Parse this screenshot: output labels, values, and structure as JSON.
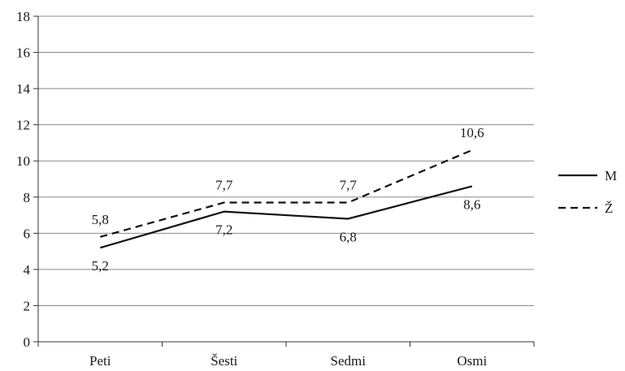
{
  "chart_data": {
    "type": "line",
    "title": "",
    "xlabel": "",
    "ylabel": "",
    "categories": [
      "Peti",
      "Šesti",
      "Sedmi",
      "Osmi"
    ],
    "ylim": [
      0,
      18
    ],
    "yticks": [
      "0",
      "2",
      "4",
      "6",
      "8",
      "10",
      "12",
      "14",
      "16",
      "18"
    ],
    "grid": true,
    "legend_position": "right",
    "series": [
      {
        "name": "M",
        "values": [
          5.2,
          7.2,
          6.8,
          8.6
        ],
        "labels": [
          "5,2",
          "7,2",
          "6,8",
          "8,6"
        ],
        "line_style": "solid",
        "color": "#111111"
      },
      {
        "name": "Ž",
        "values": [
          5.8,
          7.7,
          7.7,
          10.6
        ],
        "labels": [
          "5,8",
          "7,7",
          "7,7",
          "10,6"
        ],
        "line_style": "dashed",
        "color": "#111111"
      }
    ]
  }
}
